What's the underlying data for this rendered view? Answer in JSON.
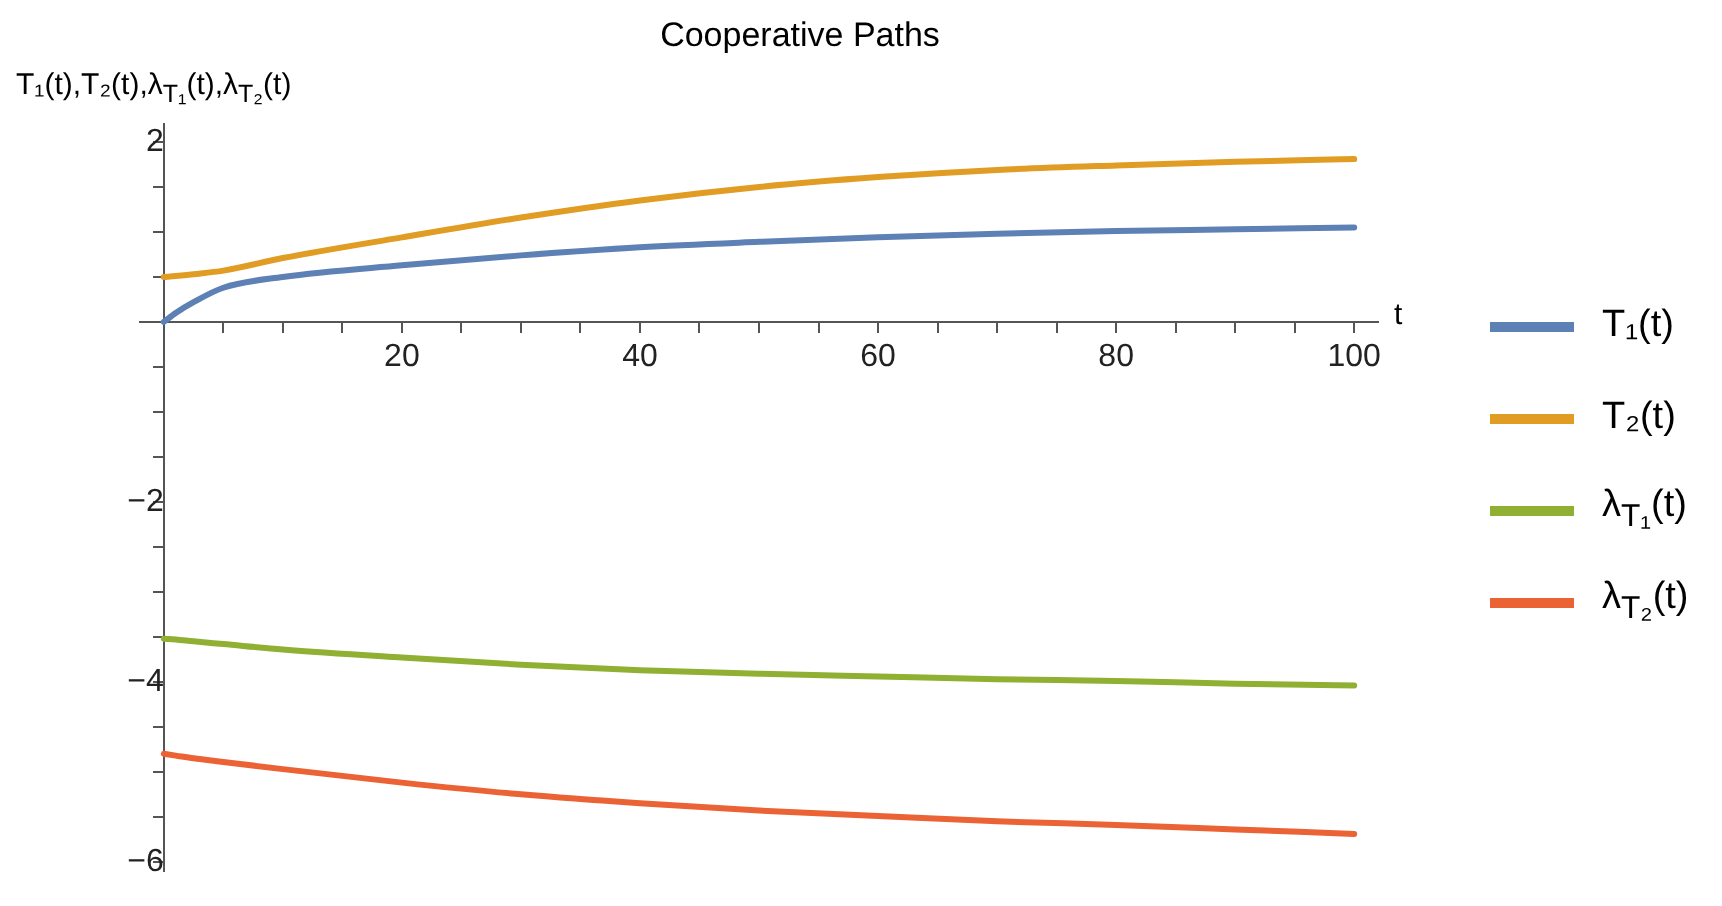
{
  "chart_data": {
    "type": "line",
    "title": "Cooperative Paths",
    "xlabel": "t",
    "ylabel": "T₁(t),T₂(t),λ$_{T₁}$(t),λ$_{T₂}$(t)",
    "x": [
      0,
      1,
      2.5,
      5,
      10,
      20,
      30,
      40,
      50,
      60,
      70,
      80,
      90,
      100
    ],
    "series": [
      {
        "name": "T₁(t)",
        "color": "#5e81b5",
        "values": [
          0,
          0.1,
          0.22,
          0.38,
          0.5,
          0.63,
          0.74,
          0.83,
          0.89,
          0.94,
          0.98,
          1.01,
          1.03,
          1.05
        ]
      },
      {
        "name": "T₂(t)",
        "color": "#e19c24",
        "values": [
          0.5,
          0.51,
          0.53,
          0.57,
          0.71,
          0.94,
          1.16,
          1.35,
          1.5,
          1.61,
          1.69,
          1.74,
          1.78,
          1.81
        ]
      },
      {
        "name": "λ$_{T₁}$(t)",
        "color": "#8fb032",
        "values": [
          -3.52,
          -3.53,
          -3.55,
          -3.58,
          -3.64,
          -3.73,
          -3.81,
          -3.87,
          -3.91,
          -3.94,
          -3.97,
          -3.99,
          -4.02,
          -4.04
        ]
      },
      {
        "name": "λ$_{T₂}$(t)",
        "color": "#eb6235",
        "values": [
          -4.8,
          -4.82,
          -4.85,
          -4.89,
          -4.97,
          -5.12,
          -5.25,
          -5.35,
          -5.43,
          -5.49,
          -5.55,
          -5.59,
          -5.64,
          -5.69
        ]
      }
    ],
    "xlim": [
      -2,
      102
    ],
    "ylim": [
      -6.1,
      2.2
    ],
    "xticks": [
      {
        "value": 5,
        "label": null
      },
      {
        "value": 10,
        "label": null
      },
      {
        "value": 15,
        "label": null
      },
      20,
      {
        "value": 25,
        "label": null
      },
      {
        "value": 30,
        "label": null
      },
      {
        "value": 35,
        "label": null
      },
      40,
      {
        "value": 45,
        "label": null
      },
      {
        "value": 50,
        "label": null
      },
      {
        "value": 55,
        "label": null
      },
      60,
      {
        "value": 65,
        "label": null
      },
      {
        "value": 70,
        "label": null
      },
      {
        "value": 75,
        "label": null
      },
      80,
      {
        "value": 85,
        "label": null
      },
      {
        "value": 90,
        "label": null
      },
      {
        "value": 95,
        "label": null
      },
      100
    ],
    "yticks": [
      -6,
      {
        "value": -5.5,
        "label": null
      },
      {
        "value": -5,
        "label": null
      },
      {
        "value": -4.5,
        "label": null
      },
      -4,
      {
        "value": -3.5,
        "label": null
      },
      {
        "value": -3,
        "label": null
      },
      {
        "value": -2.5,
        "label": null
      },
      -2,
      {
        "value": -1.5,
        "label": null
      },
      {
        "value": -1,
        "label": null
      },
      {
        "value": -0.5,
        "label": null
      },
      {
        "value": 0.5,
        "label": null
      },
      {
        "value": 1,
        "label": null
      },
      {
        "value": 1.5,
        "label": null
      },
      2
    ],
    "legend": "right",
    "marker": "none",
    "line_style": "solid"
  }
}
